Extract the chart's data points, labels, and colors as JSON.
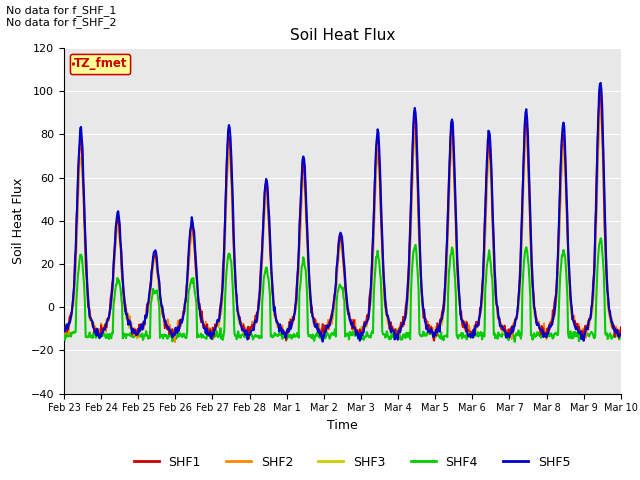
{
  "title": "Soil Heat Flux",
  "xlabel": "Time",
  "ylabel": "Soil Heat Flux",
  "ylim": [
    -40,
    120
  ],
  "yticks": [
    -40,
    -20,
    0,
    20,
    40,
    60,
    80,
    100,
    120
  ],
  "xtick_labels": [
    "Feb 23",
    "Feb 24",
    "Feb 25",
    "Feb 26",
    "Feb 27",
    "Feb 28",
    "Mar 1",
    "Mar 2",
    "Mar 3",
    "Mar 4",
    "Mar 5",
    "Mar 6",
    "Mar 7",
    "Mar 8",
    "Mar 9",
    "Mar 10"
  ],
  "annotation_text": "No data for f_SHF_1\nNo data for f_SHF_2",
  "legend_label": "TZ_fmet",
  "legend_color": "#cc0000",
  "legend_bg": "#ffff99",
  "colors": {
    "SHF1": "#cc0000",
    "SHF2": "#ff8800",
    "SHF3": "#cccc00",
    "SHF4": "#00cc00",
    "SHF5": "#0000cc"
  },
  "background_color": "#e8e8e8",
  "grid_color": "#ffffff",
  "day_peaks": [
    83,
    44,
    26,
    41,
    85,
    60,
    70,
    35,
    82,
    92,
    87,
    82,
    92,
    86,
    106
  ],
  "night_base": -15,
  "figsize": [
    6.4,
    4.8
  ],
  "dpi": 100
}
